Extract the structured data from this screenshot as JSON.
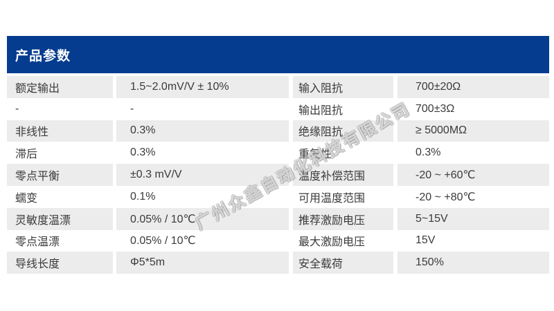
{
  "colors": {
    "accent_blue": "#053c8f",
    "row_alt_gray": "#ececec",
    "page_background": "#ffffff",
    "text": "#3a3a3a"
  },
  "header": {
    "title": "产品参数"
  },
  "watermark": {
    "text": "广州众鑫自动化科技有限公司"
  },
  "table": {
    "rows": [
      {
        "cells": [
          "额定输出",
          "1.5~2.0mV/V ± 10%",
          "输入阻抗",
          "700±20Ω"
        ]
      },
      {
        "cells": [
          "-",
          "-",
          "输出阻抗",
          "700±3Ω"
        ]
      },
      {
        "cells": [
          "非线性",
          "0.3%",
          "绝缘阻抗",
          "≥ 5000MΩ"
        ]
      },
      {
        "cells": [
          "滞后",
          "0.3%",
          "重复性",
          "0.3%"
        ]
      },
      {
        "cells": [
          "零点平衡",
          "±0.3 mV/V",
          "温度补偿范围",
          "-20 ~ +60℃"
        ]
      },
      {
        "cells": [
          "蠕变",
          "0.1%",
          "可用温度范围",
          "-20 ~ +80℃"
        ]
      },
      {
        "cells": [
          "灵敏度温漂",
          "0.05% / 10℃",
          "推荐激励电压",
          "5~15V"
        ]
      },
      {
        "cells": [
          "零点温漂",
          "0.05% / 10℃",
          "最大激励电压",
          "15V"
        ]
      },
      {
        "cells": [
          "导线长度",
          "Φ5*5m",
          "安全载荷",
          "150%"
        ]
      }
    ]
  }
}
